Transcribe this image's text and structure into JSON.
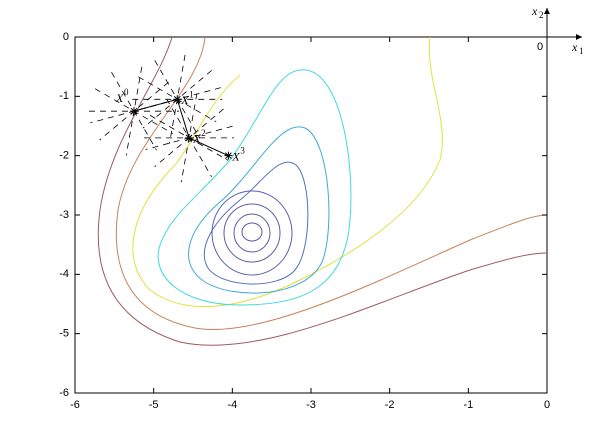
{
  "chart_data": {
    "type": "contour",
    "xlim": [
      -6,
      0
    ],
    "ylim": [
      -6,
      0
    ],
    "xticks": [
      -6,
      -5,
      -4,
      -3,
      -2,
      -1,
      0
    ],
    "yticks": [
      -6,
      -5,
      -4,
      -3,
      -2,
      -1,
      0
    ],
    "grid": false,
    "points": {
      "x": [
        -5.25,
        -4.7,
        -4.55,
        -4.05
      ],
      "y": [
        -1.25,
        -1.05,
        -1.7,
        -2.0
      ],
      "labels": [
        {
          "base": "X",
          "sup": "0"
        },
        {
          "base": "X",
          "sup": "1"
        },
        {
          "base": "X",
          "sup": "2"
        },
        {
          "base": "X",
          "sup": "3"
        }
      ],
      "color": "#000000"
    },
    "corner_axes": {
      "x_base": "x",
      "x_sub": "1",
      "y_base": "x",
      "y_sub": "2",
      "origin": "0"
    }
  }
}
